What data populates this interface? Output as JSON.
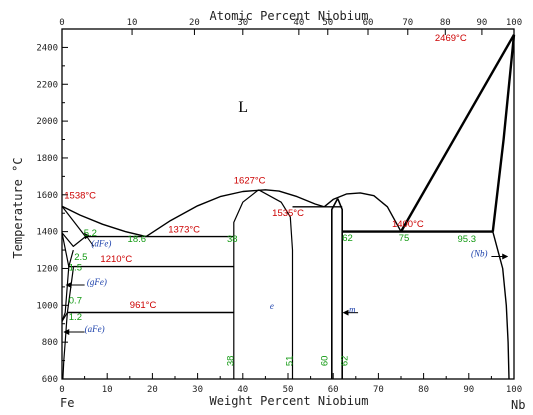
{
  "chart_data": {
    "type": "phase-diagram",
    "title": "",
    "top_axis": {
      "label": "Atomic Percent Niobium",
      "ticks": [
        0,
        10,
        20,
        30,
        40,
        50,
        60,
        70,
        80,
        90,
        100
      ],
      "tick_wt_positions": [
        0,
        15.5,
        29.3,
        40.0,
        52.4,
        58.8,
        67.7,
        76.5,
        84.8,
        92.9,
        100
      ]
    },
    "x_axis": {
      "label": "Weight Percent Niobium",
      "range": [
        0,
        100
      ],
      "ticks": [
        0,
        10,
        20,
        30,
        40,
        50,
        60,
        70,
        80,
        90,
        100
      ],
      "left_end_label": "Fe",
      "right_end_label": "Nb"
    },
    "y_axis": {
      "label": "Temperature °C",
      "range": [
        600,
        2500
      ],
      "ticks": [
        600,
        800,
        1000,
        1200,
        1400,
        1600,
        1800,
        2000,
        2200,
        2400
      ]
    },
    "grid": false,
    "phase_labels": [
      {
        "text": "L",
        "wt": 39,
        "temp": 2050
      },
      {
        "text": "(dFe)",
        "wt": 6.5,
        "temp": 1320
      },
      {
        "text": "(gFe)",
        "wt": 5.5,
        "temp": 1110
      },
      {
        "text": "(aFe)",
        "wt": 5.0,
        "temp": 855
      },
      {
        "text": "e",
        "wt": 46,
        "temp": 980
      },
      {
        "text": "m",
        "wt": 63.5,
        "temp": 960
      },
      {
        "text": "(Nb)",
        "wt": 90.5,
        "temp": 1265
      }
    ],
    "temperature_annotations": [
      {
        "text": "1538°C",
        "wt": 0.5,
        "temp": 1580
      },
      {
        "text": "1627°C",
        "wt": 38,
        "temp": 1660
      },
      {
        "text": "1535°C",
        "wt": 46.5,
        "temp": 1485
      },
      {
        "text": "1373°C",
        "wt": 23.5,
        "temp": 1395
      },
      {
        "text": "1210°C",
        "wt": 8.5,
        "temp": 1235
      },
      {
        "text": "961°C",
        "wt": 15,
        "temp": 985
      },
      {
        "text": "1400°C",
        "wt": 73,
        "temp": 1425
      },
      {
        "text": "2469°C",
        "wt": 82.5,
        "temp": 2435
      }
    ],
    "composition_annotations": [
      {
        "text": "5.2",
        "wt": 4.8,
        "temp": 1375
      },
      {
        "text": "18.6",
        "wt": 14.5,
        "temp": 1345
      },
      {
        "text": "38",
        "wt": 36.5,
        "temp": 1345
      },
      {
        "text": "2.5",
        "wt": 2.7,
        "temp": 1245
      },
      {
        "text": "1.5",
        "wt": 1.5,
        "temp": 1190
      },
      {
        "text": "0.7",
        "wt": 1.5,
        "temp": 1010
      },
      {
        "text": "1.2",
        "wt": 1.5,
        "temp": 920
      },
      {
        "text": "62",
        "wt": 62,
        "temp": 1350
      },
      {
        "text": "75",
        "wt": 74.5,
        "temp": 1350
      },
      {
        "text": "95.3",
        "wt": 87.5,
        "temp": 1345
      },
      {
        "text": "38",
        "wt": 38,
        "temp": 670,
        "vertical": true
      },
      {
        "text": "51",
        "wt": 51,
        "temp": 670,
        "vertical": true
      },
      {
        "text": "60",
        "wt": 58.7,
        "temp": 670,
        "vertical": true
      },
      {
        "text": "62",
        "wt": 63.2,
        "temp": 670,
        "vertical": true
      }
    ],
    "curves": [
      {
        "name": "liquidus-left",
        "weight": 1.4,
        "points": [
          [
            0,
            1538
          ],
          [
            4,
            1490
          ],
          [
            9,
            1440
          ],
          [
            14,
            1400
          ],
          [
            18.6,
            1373
          ]
        ]
      },
      {
        "name": "liquidus-epsilon",
        "weight": 1.4,
        "points": [
          [
            18.6,
            1373
          ],
          [
            24,
            1460
          ],
          [
            30,
            1540
          ],
          [
            35,
            1590
          ],
          [
            40,
            1618
          ],
          [
            45,
            1627
          ],
          [
            48,
            1620
          ],
          [
            52,
            1590
          ],
          [
            56,
            1550
          ],
          [
            58,
            1535
          ]
        ]
      },
      {
        "name": "liquidus-mu",
        "weight": 1.4,
        "points": [
          [
            58,
            1535
          ],
          [
            60,
            1575
          ],
          [
            63,
            1605
          ],
          [
            66,
            1610
          ],
          [
            69,
            1595
          ],
          [
            72,
            1535
          ],
          [
            75,
            1400
          ]
        ]
      },
      {
        "name": "eutectic-1373",
        "weight": 1.4,
        "points": [
          [
            5.2,
            1373
          ],
          [
            38,
            1373
          ]
        ]
      },
      {
        "name": "eutectic-1535",
        "weight": 1.4,
        "points": [
          [
            51,
            1535
          ],
          [
            62,
            1535
          ]
        ]
      },
      {
        "name": "epsilon-left",
        "weight": 1.2,
        "points": [
          [
            38,
            600
          ],
          [
            38,
            1373
          ],
          [
            38,
            1450
          ],
          [
            40,
            1560
          ],
          [
            43.5,
            1627
          ]
        ]
      },
      {
        "name": "epsilon-right",
        "weight": 1.2,
        "points": [
          [
            43.5,
            1627
          ],
          [
            48.5,
            1560
          ],
          [
            50.5,
            1480
          ],
          [
            51,
            1300
          ],
          [
            51,
            600
          ]
        ]
      },
      {
        "name": "mu-left",
        "weight": 1.6,
        "points": [
          [
            59.7,
            600
          ],
          [
            59.7,
            1520
          ],
          [
            61,
            1580
          ]
        ]
      },
      {
        "name": "mu-right",
        "weight": 1.6,
        "points": [
          [
            62,
            600
          ],
          [
            62,
            1520
          ],
          [
            61,
            1580
          ]
        ]
      },
      {
        "name": "peritectic-1400",
        "weight": 2.4,
        "points": [
          [
            62,
            1400
          ],
          [
            95.3,
            1400
          ]
        ]
      },
      {
        "name": "liquidus-nb",
        "weight": 2.4,
        "points": [
          [
            75,
            1400
          ],
          [
            100,
            2469
          ]
        ]
      },
      {
        "name": "solidus-nb",
        "weight": 2.4,
        "points": [
          [
            95.3,
            1400
          ],
          [
            97.7,
            1900
          ],
          [
            100,
            2469
          ]
        ]
      },
      {
        "name": "nb-solvus",
        "weight": 1.4,
        "points": [
          [
            95.3,
            1400
          ],
          [
            97.5,
            1200
          ],
          [
            98.3,
            1000
          ],
          [
            98.7,
            800
          ],
          [
            98.9,
            600
          ]
        ]
      },
      {
        "name": "delta-solidus",
        "weight": 1.2,
        "points": [
          [
            0,
            1538
          ],
          [
            5.2,
            1373
          ]
        ]
      },
      {
        "name": "delta-gamma-upper",
        "weight": 1.2,
        "points": [
          [
            0,
            1394
          ],
          [
            2.5,
            1320
          ],
          [
            5.2,
            1373
          ]
        ]
      },
      {
        "name": "delta-gamma-lower",
        "weight": 1.2,
        "points": [
          [
            0,
            1394
          ],
          [
            1.5,
            1210
          ],
          [
            2.5,
            1300
          ]
        ]
      },
      {
        "name": "gamma-loop",
        "weight": 1.2,
        "points": [
          [
            0,
            912
          ],
          [
            0.7,
            961
          ],
          [
            1.5,
            1210
          ],
          [
            2.5,
            1210
          ]
        ]
      },
      {
        "name": "gamma-loop-inner",
        "weight": 1.2,
        "points": [
          [
            0,
            912
          ],
          [
            1.2,
            961
          ],
          [
            2.5,
            1200
          ],
          [
            2.5,
            1210
          ]
        ]
      },
      {
        "name": "alpha-solvus",
        "weight": 1.2,
        "points": [
          [
            1.2,
            961
          ],
          [
            1.0,
            900
          ],
          [
            0.7,
            800
          ],
          [
            0.4,
            700
          ],
          [
            0.2,
            600
          ]
        ]
      },
      {
        "name": "eutectoid-1210",
        "weight": 1.4,
        "points": [
          [
            2.5,
            1210
          ],
          [
            38,
            1210
          ]
        ]
      },
      {
        "name": "eutectoid-961",
        "weight": 1.4,
        "points": [
          [
            1.2,
            961
          ],
          [
            38,
            961
          ]
        ]
      }
    ],
    "arrows": [
      {
        "name": "arrow-dfe",
        "from": [
          7.0,
          1320
        ],
        "to": [
          5.0,
          1390
        ]
      },
      {
        "name": "arrow-gfe",
        "from": [
          5.0,
          1110
        ],
        "to": [
          1.0,
          1110
        ]
      },
      {
        "name": "arrow-afe",
        "from": [
          5.0,
          855
        ],
        "to": [
          0.5,
          855
        ]
      },
      {
        "name": "arrow-mu",
        "from": [
          65.5,
          960
        ],
        "to": [
          62.3,
          960
        ]
      },
      {
        "name": "arrow-nb",
        "from": [
          95.0,
          1265
        ],
        "to": [
          98.5,
          1265
        ]
      }
    ],
    "colors": {
      "axis": "#000000",
      "curve": "#000000",
      "temperature_annotation": "#cc0000",
      "composition_annotation": "#119911",
      "phase_label": "#1a3faa",
      "axis_label": "#222222"
    }
  }
}
